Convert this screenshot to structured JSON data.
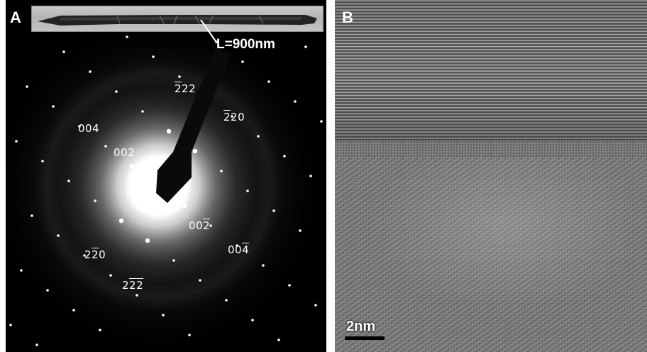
{
  "panel_a": {
    "letter": "A",
    "inset_length_label": "L=900nm",
    "reflections": [
      {
        "id": "222-top",
        "digits": [
          "2",
          "2",
          "2"
        ],
        "bars": [
          true,
          false,
          false
        ]
      },
      {
        "id": "220-top",
        "digits": [
          "2",
          "2",
          "0"
        ],
        "bars": [
          true,
          false,
          false
        ]
      },
      {
        "id": "004-left",
        "digits": [
          "0",
          "0",
          "4"
        ],
        "bars": [
          false,
          false,
          false
        ]
      },
      {
        "id": "002-left",
        "digits": [
          "0",
          "0",
          "2"
        ],
        "bars": [
          false,
          false,
          false
        ]
      },
      {
        "id": "002-right",
        "digits": [
          "0",
          "0",
          "2"
        ],
        "bars": [
          false,
          false,
          true
        ]
      },
      {
        "id": "004-right",
        "digits": [
          "0",
          "0",
          "4"
        ],
        "bars": [
          false,
          false,
          true
        ]
      },
      {
        "id": "220-bottom",
        "digits": [
          "2",
          "2",
          "0"
        ],
        "bars": [
          false,
          true,
          false
        ]
      },
      {
        "id": "222-bottom",
        "digits": [
          "2",
          "2",
          "2"
        ],
        "bars": [
          false,
          true,
          true
        ]
      }
    ]
  },
  "panel_b": {
    "letter": "B",
    "scale_bar_label": "2nm"
  }
}
